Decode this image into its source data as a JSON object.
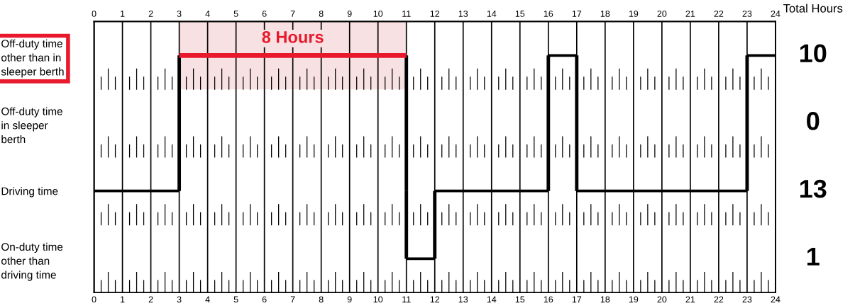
{
  "chart_data": {
    "type": "bar",
    "orientation": "horizontal",
    "categories": [
      "Off-duty time\nother than in\nsleeper berth",
      "Off-duty time\nin sleeper\nberth",
      "Driving time",
      "On-duty time\nother than\ndriving time"
    ],
    "series": [
      {
        "colors": [
          "#e8192c",
          null,
          "#000000",
          "#000000"
        ],
        "base": [
          3,
          null,
          0,
          11
        ],
        "values": [
          8,
          null,
          3,
          1
        ]
      },
      {
        "colors": [
          "#000000",
          null,
          "#000000",
          null
        ],
        "base": [
          16,
          null,
          12,
          null
        ],
        "values": [
          1,
          null,
          4,
          null
        ]
      },
      {
        "colors": [
          "#000000",
          null,
          "#000000",
          null
        ],
        "base": [
          23,
          null,
          17,
          null
        ],
        "values": [
          1,
          null,
          6,
          null
        ]
      }
    ],
    "xlim": [
      0,
      24
    ],
    "xticks": [
      0,
      1,
      2,
      3,
      4,
      5,
      6,
      7,
      8,
      9,
      10,
      11,
      12,
      13,
      14,
      15,
      16,
      17,
      18,
      19,
      20,
      21,
      22,
      23,
      24
    ],
    "x2lim": [
      0,
      24
    ],
    "x2ticks": [
      0,
      1,
      2,
      3,
      4,
      5,
      6,
      7,
      8,
      9,
      10,
      11,
      12,
      13,
      14,
      15,
      16,
      17,
      18,
      19,
      20,
      21,
      22,
      23,
      24
    ],
    "annotations": [
      "Total Hours",
      "10",
      "0",
      "13",
      "1"
    ],
    "bands": [
      {
        "axis": "x",
        "from": 3,
        "to": 11,
        "label": "8 Hours",
        "color": "#f8e1e3"
      }
    ],
    "grid": "x"
  }
}
